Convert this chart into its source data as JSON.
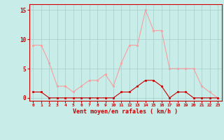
{
  "hours": [
    0,
    1,
    2,
    3,
    4,
    5,
    6,
    7,
    8,
    9,
    10,
    11,
    12,
    13,
    14,
    15,
    16,
    17,
    18,
    19,
    20,
    21,
    22,
    23
  ],
  "rafales": [
    9,
    9,
    6,
    2,
    2,
    1,
    2,
    3,
    3,
    4,
    2,
    6,
    9,
    9,
    15,
    11.5,
    11.5,
    5,
    5,
    5,
    5,
    2,
    1,
    0
  ],
  "moyen": [
    1,
    1,
    0,
    0,
    0,
    0,
    0,
    0,
    0,
    0,
    0,
    1,
    1,
    2,
    3,
    3,
    2,
    0,
    1,
    1,
    0,
    0,
    0,
    0
  ],
  "line_color_light": "#F4A0A0",
  "line_color_dark": "#CC0000",
  "bg_color": "#C8ECE8",
  "grid_color": "#A8CCCC",
  "axis_color": "#CC0000",
  "text_color": "#CC0000",
  "xlabel": "Vent moyen/en rafales ( km/h )",
  "yticks": [
    0,
    5,
    10,
    15
  ],
  "ylim": [
    -0.5,
    16
  ],
  "xlim": [
    -0.5,
    23.5
  ],
  "marker_size": 2.0,
  "line_width": 0.8
}
